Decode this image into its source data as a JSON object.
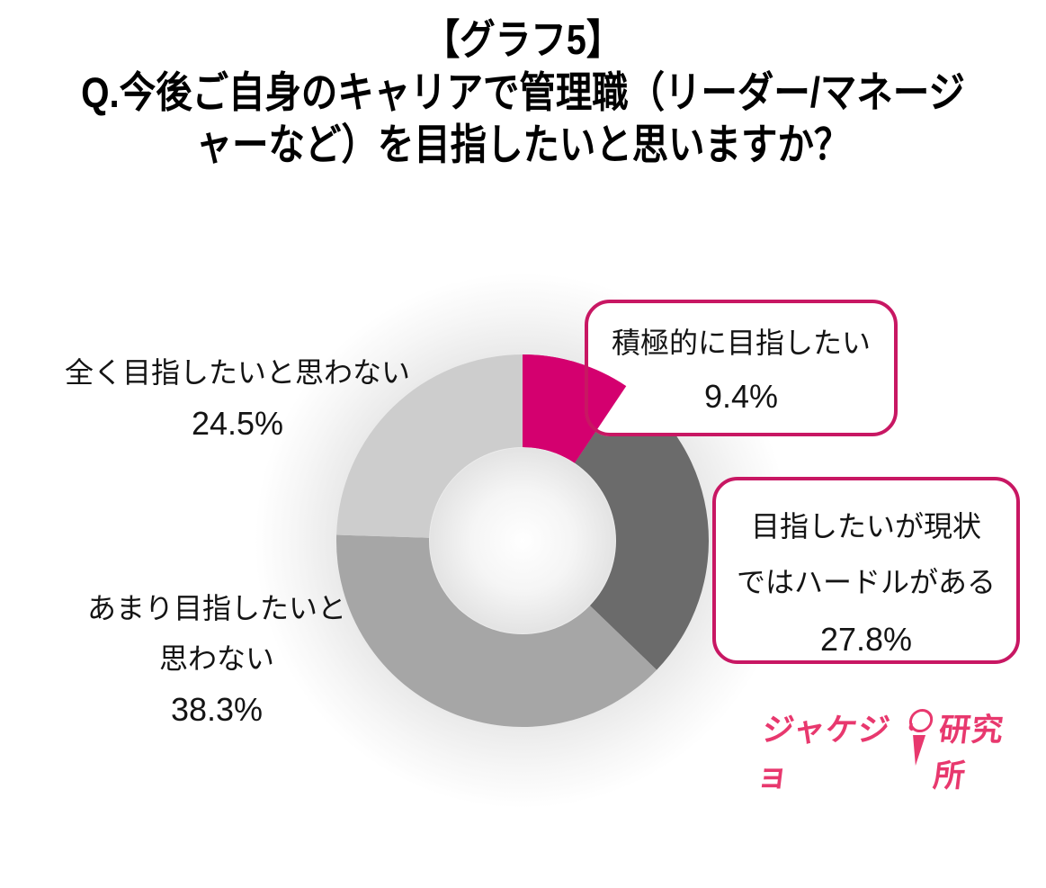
{
  "title": {
    "line1": "【グラフ5】",
    "line2": "Q.今後ご自身のキャリアで管理職（リーダー/マネージ",
    "line3": "ャーなど）を目指したいと思いますか？"
  },
  "chart_data": {
    "type": "pie",
    "subtype": "donut",
    "hole_ratio": 0.5,
    "start_angle_deg": 0,
    "direction": "clockwise",
    "title": "Q.今後ご自身のキャリアで管理職（リーダー/マネージャーなど）を目指したいと思いますか？",
    "categories": [
      "積極的に目指したい",
      "目指したいが現状ではハードルがある",
      "あまり目指したいと思わない",
      "全く目指したいと思わない"
    ],
    "values": [
      9.4,
      27.8,
      38.3,
      24.5
    ],
    "unit": "%",
    "colors": [
      "#D4006F",
      "#6B6B6B",
      "#A6A6A6",
      "#CDCDCD"
    ],
    "legend": "none",
    "labels_position": "outside"
  },
  "labels": {
    "positive": {
      "line1": "積極的に目指したい",
      "pct": "9.4%"
    },
    "hurdle": {
      "line1": "目指したいが現状",
      "line2": "ではハードルがある",
      "pct": "27.8%"
    },
    "not_really": {
      "line1": "あまり目指したいと",
      "line2": "思わない",
      "pct": "38.3%"
    },
    "not_at_all": {
      "line1": "全く目指したいと思わない",
      "pct": "24.5%"
    }
  },
  "logo": {
    "left": "ジャケジョ",
    "right": "研究所"
  },
  "style": {
    "callout_border": "#C81763",
    "logo_pink": "#E8386E"
  }
}
